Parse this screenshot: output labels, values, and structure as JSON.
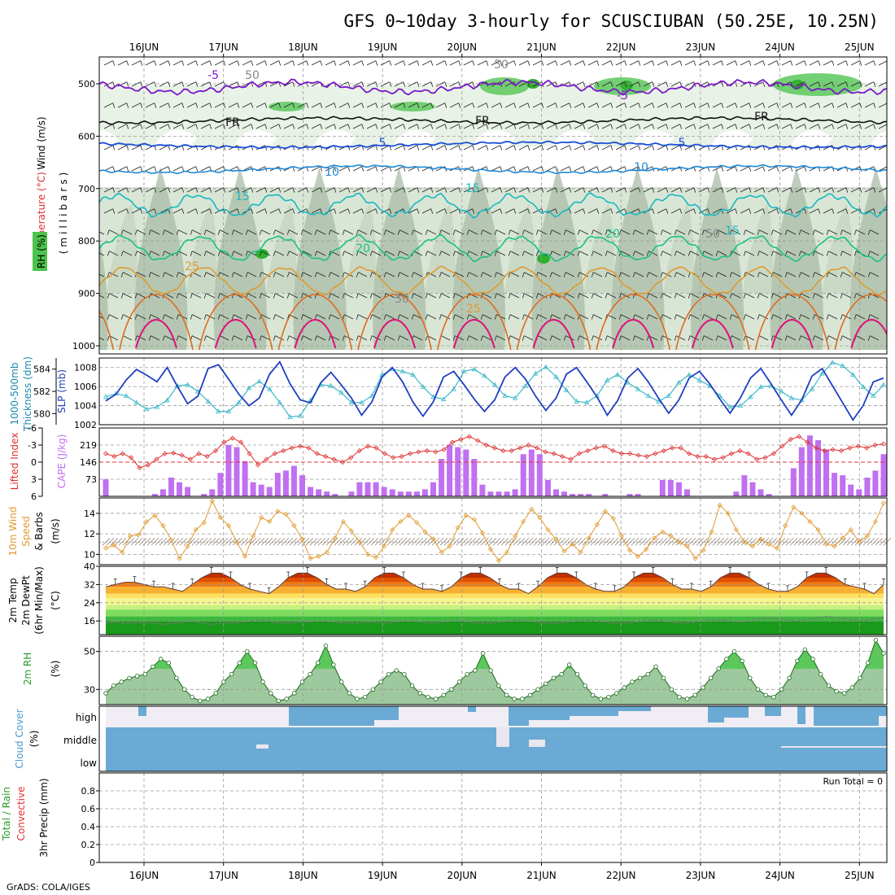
{
  "title": "GFS 0~10day 3-hourly for SCUSCIUBAN (50.25E, 10.25N)",
  "credit": "GrADS: COLA/IGES",
  "dates": [
    "16JUN",
    "17JUN",
    "18JUN",
    "19JUN",
    "20JUN",
    "21JUN",
    "22JUN",
    "23JUN",
    "24JUN",
    "25JUN"
  ],
  "panels": {
    "upper": {
      "ylabels": [
        "Wind (m/s)",
        "Temperature (°C)",
        "RH (%)",
        "(millibars)"
      ],
      "yticks": [
        "500",
        "600",
        "700",
        "800",
        "900",
        "1000"
      ],
      "contour_labels": [
        "-5",
        "-5",
        "FR",
        "FR",
        "FR",
        "5",
        "5",
        "10",
        "10",
        "15",
        "15",
        "15",
        "20",
        "20",
        "25",
        "25",
        "50",
        "50",
        "50",
        "50"
      ]
    },
    "slp": {
      "ylabels": [
        "1000-500mb",
        "Thickness (dm)",
        "SLP (mb)"
      ],
      "left_ticks": [
        "584",
        "582",
        "580"
      ],
      "right_ticks": [
        "1008",
        "1006",
        "1004",
        "1002"
      ]
    },
    "cape": {
      "ylabels": [
        "Lifted Index",
        "CAPE (J/kg)"
      ],
      "left_ticks": [
        "-6",
        "-3",
        "0",
        "3",
        "6"
      ],
      "right_ticks": [
        "219",
        "146",
        "73"
      ]
    },
    "wind10": {
      "ylabels": [
        "10m Wind",
        "Speed",
        "& Barbs",
        "(m/s)"
      ],
      "yticks": [
        "14",
        "12",
        "10"
      ]
    },
    "temp2m": {
      "ylabels": [
        "2m Temp",
        "2m DewPt",
        "(6hr Min/Max)",
        "(°C)"
      ],
      "yticks": [
        "40",
        "32",
        "24",
        "16"
      ]
    },
    "rh2m": {
      "ylabels": [
        "2m RH",
        "(%)"
      ],
      "yticks": [
        "50",
        "30"
      ]
    },
    "cloud": {
      "ylabels": [
        "Cloud Cover",
        "(%)"
      ],
      "levels": [
        "high",
        "middle",
        "low"
      ]
    },
    "precip": {
      "ylabels": [
        "Total / Rain",
        "Convective",
        "3hr Precip (mm)"
      ],
      "yticks": [
        "0.8",
        "0.6",
        "0.4",
        "0.2",
        "0"
      ],
      "run_total": "Run Total = 0"
    }
  },
  "colors": {
    "slp": "#1f3fbf",
    "thickness": "#3bb8c8",
    "li": "#e03030",
    "cape": "#c070f0",
    "wind": "#e09a30",
    "rh": "#2a9a2a",
    "cloud": "#6aaad4",
    "cloudbg": "#f0eef4",
    "temp_ramp": [
      "#8a1a00",
      "#c03000",
      "#e05000",
      "#f07a10",
      "#f7b030",
      "#fde060",
      "#f5f590",
      "#c8f080",
      "#80dc60",
      "#3cb83c",
      "#1a9a1a"
    ]
  },
  "chart_data": [
    {
      "type": "line",
      "panel": "Sea level pressure and 1000-500mb thickness",
      "ylim": [
        1002,
        1009
      ],
      "y2lim": [
        579,
        585
      ],
      "series": [
        {
          "name": "SLP (mb)",
          "axis": "right",
          "values": [
            1004.5,
            1005.2,
            1006.7,
            1007.8,
            1007.2,
            1006.5,
            1008.0,
            1006.0,
            1004.2,
            1005.0,
            1007.9,
            1008.3,
            1006.8,
            1005.2,
            1004.0,
            1004.8,
            1007.3,
            1008.6,
            1006.3,
            1004.6,
            1004.3,
            1006.4,
            1007.5,
            1006.2,
            1004.8,
            1003.0,
            1004.4,
            1007.0,
            1008.0,
            1006.5,
            1004.4,
            1002.9,
            1004.4,
            1007.0,
            1007.6,
            1006.2,
            1004.7,
            1003.4,
            1004.6,
            1007.0,
            1008.0,
            1006.8,
            1005.0,
            1003.5,
            1004.8,
            1007.3,
            1008.0,
            1006.5,
            1004.9,
            1003.0,
            1004.5,
            1006.9,
            1007.9,
            1006.5,
            1004.8,
            1003.2,
            1004.6,
            1006.9,
            1007.6,
            1006.3,
            1004.7,
            1003.2,
            1004.8,
            1006.9,
            1007.9,
            1006.3,
            1004.6,
            1003.0,
            1004.6,
            1007.1,
            1007.9,
            1006.1,
            1004.3,
            1002.5,
            1004.0,
            1006.5,
            1006.9
          ]
        },
        {
          "name": "1000-500mb Thickness (dm)",
          "axis": "left",
          "values": [
            581.5,
            581.8,
            581.6,
            581.0,
            580.4,
            580.6,
            581.2,
            582.5,
            582.6,
            582.0,
            581.1,
            580.2,
            580.2,
            581.0,
            582.3,
            582.9,
            582.2,
            581.0,
            579.7,
            579.8,
            581.2,
            582.6,
            582.5,
            581.9,
            581.0,
            581.0,
            581.6,
            583.5,
            584.0,
            583.8,
            583.5,
            582.4,
            581.5,
            581.3,
            582.2,
            583.8,
            584.0,
            583.4,
            582.6,
            581.6,
            581.4,
            582.5,
            583.6,
            584.2,
            583.3,
            582.1,
            581.1,
            581.0,
            581.6,
            583.0,
            583.5,
            582.8,
            582.2,
            581.6,
            581.1,
            581.6,
            582.8,
            583.5,
            583.0,
            582.5,
            581.6,
            580.6,
            580.7,
            581.5,
            582.4,
            582.5,
            582.0,
            581.4,
            581.2,
            582.2,
            583.6,
            584.6,
            584.3,
            583.5,
            582.4,
            581.6,
            582.6
          ]
        }
      ]
    },
    {
      "type": "bar",
      "panel": "Lifted Index and CAPE",
      "ylim": [
        0,
        292
      ],
      "y2lim": [
        -6,
        6
      ],
      "series": [
        {
          "name": "CAPE (J/kg)",
          "values": [
            73,
            0,
            0,
            0,
            0,
            0,
            10,
            30,
            80,
            60,
            40,
            0,
            10,
            30,
            100,
            220,
            210,
            150,
            60,
            50,
            40,
            100,
            110,
            130,
            90,
            40,
            30,
            20,
            10,
            0,
            20,
            60,
            60,
            60,
            40,
            30,
            20,
            20,
            20,
            30,
            60,
            160,
            220,
            210,
            200,
            160,
            50,
            20,
            20,
            20,
            30,
            180,
            200,
            180,
            70,
            30,
            20,
            10,
            10,
            10,
            0,
            10,
            0,
            0,
            10,
            10,
            0,
            0,
            70,
            70,
            60,
            30,
            0,
            0,
            0,
            0,
            0,
            20,
            90,
            60,
            30,
            10,
            0,
            0,
            120,
            210,
            260,
            240,
            200,
            100,
            90,
            50,
            30,
            80,
            110,
            180
          ]
        },
        {
          "name": "Lifted Index",
          "values": [
            -1.5,
            -1.0,
            -1.5,
            -0.8,
            1.0,
            0.5,
            -0.5,
            -1.5,
            -1.6,
            -1.2,
            -0.5,
            -1.5,
            -1.0,
            -2.0,
            -3.5,
            -4.2,
            -3.5,
            -1.5,
            0.5,
            -0.5,
            -1.5,
            -2.0,
            -2.5,
            -2.8,
            -2.5,
            -1.5,
            -1.0,
            -0.5,
            0.0,
            -0.8,
            -2.0,
            -2.8,
            -2.5,
            -1.5,
            -0.8,
            -1.0,
            -1.5,
            -1.8,
            -2.0,
            -1.8,
            -2.2,
            -3.5,
            -4.0,
            -4.5,
            -3.8,
            -3.0,
            -2.5,
            -2.0,
            -2.0,
            -2.5,
            -3.0,
            -2.5,
            -1.8,
            -1.5,
            -1.0,
            -0.5,
            -1.5,
            -2.0,
            -2.5,
            -2.8,
            -2.0,
            -1.5,
            -1.5,
            -1.2,
            -1.0,
            -1.5,
            -2.0,
            -2.5,
            -2.5,
            -1.5,
            -1.0,
            -1.0,
            -0.5,
            -0.8,
            -1.5,
            -2.0,
            -1.5,
            -0.5,
            -0.8,
            -1.5,
            -2.8,
            -4.0,
            -4.5,
            -3.5,
            -2.5,
            -2.0,
            -2.2,
            -2.0,
            -2.5,
            -2.8,
            -2.5,
            -3.0,
            -3.2
          ]
        }
      ]
    },
    {
      "type": "line",
      "panel": "10m Wind Speed",
      "ylim": [
        9,
        15.5
      ],
      "series": [
        {
          "name": "10m Wind Speed (m/s)",
          "values": [
            10.6,
            10.9,
            10.2,
            11.8,
            11.9,
            13.2,
            13.8,
            12.8,
            11.4,
            9.6,
            10.8,
            12.4,
            13.1,
            15.2,
            13.6,
            12.8,
            11.2,
            9.8,
            11.8,
            13.6,
            13.2,
            14.2,
            13.9,
            12.8,
            11.5,
            9.6,
            9.8,
            10.2,
            11.6,
            13.2,
            12.3,
            11.2,
            10.0,
            9.7,
            10.8,
            12.4,
            13.2,
            13.8,
            13.1,
            12.2,
            11.5,
            10.2,
            10.8,
            12.6,
            13.8,
            13.4,
            12.1,
            10.5,
            9.4,
            10.2,
            11.8,
            13.2,
            14.4,
            13.6,
            12.4,
            11.5,
            10.3,
            11.0,
            10.2,
            11.6,
            12.9,
            14.2,
            13.5,
            11.8,
            10.4,
            9.8,
            10.5,
            11.6,
            12.2,
            11.8,
            11.2,
            10.8,
            9.6,
            10.4,
            12.2,
            14.8,
            14.0,
            12.4,
            11.2,
            10.8,
            11.5,
            11.0,
            10.6,
            12.8,
            14.6,
            14.0,
            13.2,
            12.4,
            11.0,
            10.8,
            11.6,
            12.4,
            11.2,
            11.8,
            13.2,
            15.0
          ]
        }
      ]
    },
    {
      "type": "area",
      "panel": "2m Temperature and Dew Point",
      "ylim": [
        10,
        40
      ],
      "series": [
        {
          "name": "2m Temp (°C)",
          "values": [
            31,
            32,
            33,
            33,
            32,
            31,
            31,
            30,
            29,
            32,
            35,
            37,
            37,
            35,
            32,
            30,
            29,
            28,
            31,
            35,
            37,
            37,
            35,
            32,
            30,
            30,
            29,
            31,
            35,
            37,
            37,
            35,
            32,
            30,
            30,
            29,
            31,
            35,
            37,
            37,
            35,
            32,
            30,
            30,
            28,
            31,
            35,
            37,
            37,
            35,
            32,
            30,
            29,
            29,
            31,
            35,
            37,
            37,
            35,
            32,
            30,
            30,
            29,
            31,
            35,
            37,
            37,
            35,
            32,
            30,
            29,
            29,
            31,
            35,
            37,
            37,
            35,
            32,
            31,
            30,
            28,
            32
          ]
        },
        {
          "name": "2m DewPt (°C)",
          "values": [
            15,
            15.5,
            15,
            15,
            15.5,
            15,
            14.5,
            15,
            15.5,
            16,
            15,
            14.5,
            15,
            15,
            15.5,
            16,
            16.5,
            16,
            15,
            15,
            15.5,
            15.5,
            16,
            16,
            15.5,
            15,
            15,
            15.5,
            15.5,
            15,
            15.5,
            16,
            16,
            15.5,
            15,
            15.5,
            16,
            16,
            15.5,
            15,
            15,
            15.5,
            16,
            16.5,
            16,
            15.5,
            15,
            15,
            15.5,
            16,
            16.5,
            16,
            15.5,
            15,
            15,
            15.5,
            16,
            16.5,
            16,
            15.5,
            15,
            15.5,
            16,
            16.5,
            16.5,
            16,
            15.5,
            16,
            17,
            17.5,
            17,
            16.5,
            16,
            16.5,
            17,
            18,
            17.5,
            17,
            16.5,
            16,
            17,
            17.5
          ]
        }
      ]
    },
    {
      "type": "area",
      "panel": "2m Relative Humidity",
      "ylim": [
        22,
        58
      ],
      "series": [
        {
          "name": "2m RH (%)",
          "values": [
            28,
            32,
            34,
            36,
            37,
            38,
            42,
            46,
            44,
            36,
            30,
            26,
            24,
            25,
            28,
            34,
            38,
            44,
            50,
            44,
            34,
            28,
            24,
            25,
            28,
            34,
            38,
            44,
            53,
            43,
            34,
            28,
            25,
            26,
            30,
            34,
            38,
            40,
            38,
            32,
            28,
            26,
            25,
            27,
            30,
            34,
            38,
            40,
            49,
            40,
            32,
            27,
            25,
            25,
            27,
            30,
            33,
            36,
            38,
            43,
            38,
            32,
            27,
            25,
            26,
            28,
            31,
            34,
            36,
            38,
            42,
            36,
            30,
            26,
            25,
            27,
            31,
            36,
            41,
            46,
            50,
            45,
            36,
            30,
            27,
            26,
            30,
            36,
            45,
            51,
            46,
            38,
            32,
            29,
            28,
            31,
            36,
            44,
            56,
            49
          ]
        }
      ]
    },
    {
      "type": "table",
      "panel": "Cloud Cover (%)",
      "categories": [
        "high",
        "middle",
        "low"
      ],
      "values": [
        "mostly clear before 18JUN, intermittently overcast after",
        "overcast",
        "overcast"
      ]
    },
    {
      "type": "bar",
      "panel": "3hr Precip (mm)",
      "ylim": [
        0,
        1
      ],
      "series": [
        {
          "name": "Total / Rain",
          "values": [
            0,
            0,
            0,
            0,
            0,
            0,
            0,
            0,
            0,
            0,
            0,
            0,
            0,
            0,
            0,
            0,
            0,
            0,
            0,
            0
          ]
        },
        {
          "name": "Convective",
          "values": [
            0,
            0,
            0,
            0,
            0,
            0,
            0,
            0,
            0,
            0,
            0,
            0,
            0,
            0,
            0,
            0,
            0,
            0,
            0,
            0
          ]
        }
      ]
    }
  ]
}
